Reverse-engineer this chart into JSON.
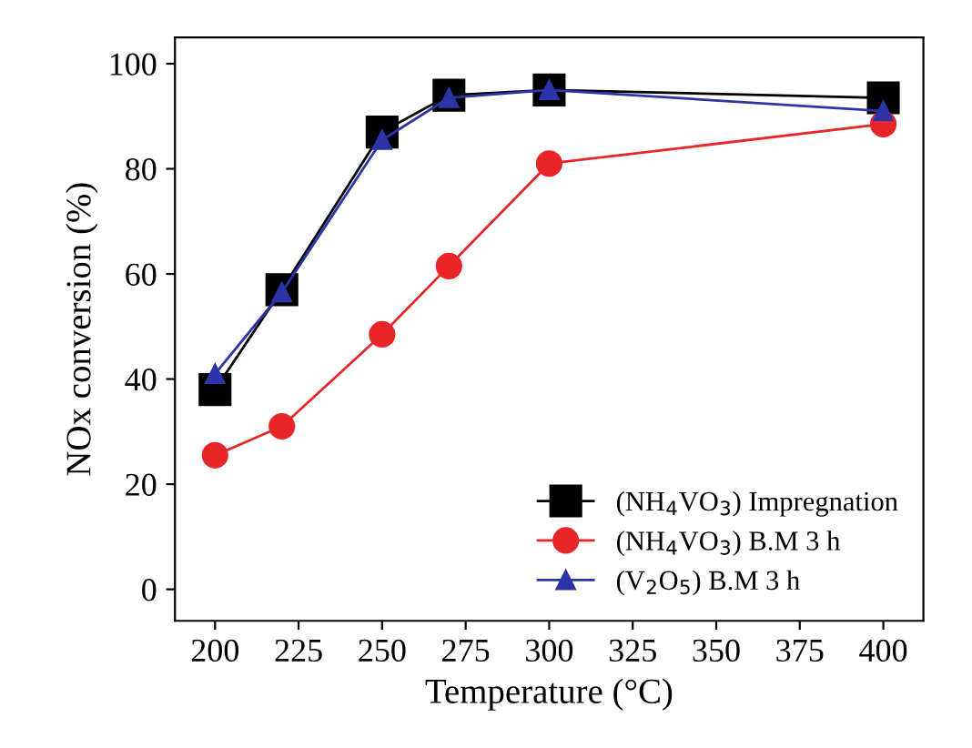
{
  "chart_data": {
    "type": "line",
    "xlabel": "Temperature (°C)",
    "ylabel": "NOx conversion (%)",
    "x": [
      200,
      220,
      250,
      270,
      300,
      400
    ],
    "series": [
      {
        "name": "(NH$_{4}$VO$_{3}$) Impregnation",
        "color": "#000000",
        "marker": "square",
        "values": [
          38,
          57,
          87,
          94,
          95,
          93.5
        ]
      },
      {
        "name": "(NH$_{4}$VO$_{3}$) B.M 3 h",
        "color": "#e8262a",
        "marker": "circle",
        "values": [
          25.5,
          31,
          48.5,
          61.5,
          81,
          88.5
        ]
      },
      {
        "name": "(V$_{2}$O$_{5}$) B.M 3 h",
        "color": "#2b35a8",
        "marker": "triangle",
        "values": [
          41,
          56.5,
          85.5,
          93.5,
          95,
          91
        ]
      }
    ],
    "xlim": [
      188,
      412
    ],
    "xticks": [
      200,
      225,
      250,
      275,
      300,
      325,
      350,
      375,
      400
    ],
    "ylim": [
      -6,
      105
    ],
    "yticks": [
      0,
      20,
      40,
      60,
      80,
      100
    ],
    "legend": "bottom right",
    "grid": false,
    "line_style": "solid"
  }
}
